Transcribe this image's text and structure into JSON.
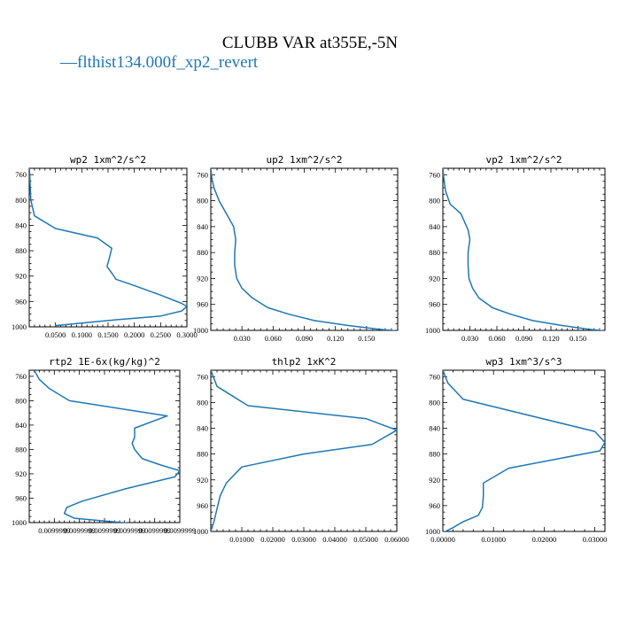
{
  "figure": {
    "title": "CLUBB VAR at355E,-5N",
    "legend_label": "flthist134.000f_xp2_revert",
    "legend_marker": "—",
    "line_color": "#1f77b4"
  },
  "chart_data": [
    {
      "type": "line",
      "title": "wp2  1xm^2/s^2",
      "xlim": [
        0.0,
        0.3
      ],
      "ylim": [
        1000,
        750
      ],
      "xticks": [
        0.05,
        0.1,
        0.15,
        0.2,
        0.25,
        0.3
      ],
      "xtick_labels": [
        "0.0500",
        "0.1000",
        "0.1500",
        "0.2000",
        "0.2500",
        "0.3000"
      ],
      "yticks": [
        760,
        800,
        840,
        880,
        920,
        960,
        1000
      ],
      "ytick_labels": [
        "760",
        "800",
        "840",
        "880",
        "920",
        "960",
        "1000"
      ],
      "series": [
        {
          "x": [
            0.0,
            0.001,
            0.002,
            0.003,
            0.01,
            0.05,
            0.13,
            0.157,
            0.153,
            0.148,
            0.157,
            0.165,
            0.2,
            0.25,
            0.29,
            0.3,
            0.29,
            0.25,
            0.15,
            0.05
          ],
          "y": [
            750,
            760,
            780,
            800,
            825,
            845,
            860,
            876,
            890,
            905,
            915,
            925,
            935,
            950,
            963,
            968,
            975,
            983,
            990,
            998
          ]
        }
      ]
    },
    {
      "type": "line",
      "title": "up2  1xm^2/s^2",
      "xlim": [
        0.0,
        0.18
      ],
      "ylim": [
        1000,
        750
      ],
      "xticks": [
        0.03,
        0.06,
        0.09,
        0.12,
        0.15
      ],
      "xtick_labels": [
        "0.030",
        "0.060",
        "0.090",
        "0.120",
        "0.150"
      ],
      "yticks": [
        760,
        800,
        840,
        880,
        920,
        960,
        1000
      ],
      "ytick_labels": [
        "760",
        "800",
        "840",
        "880",
        "920",
        "960",
        "1000"
      ],
      "series": [
        {
          "x": [
            0.0,
            0.001,
            0.003,
            0.008,
            0.015,
            0.022,
            0.024,
            0.023,
            0.023,
            0.025,
            0.03,
            0.04,
            0.055,
            0.075,
            0.1,
            0.13,
            0.16,
            0.18
          ],
          "y": [
            750,
            765,
            780,
            800,
            820,
            840,
            860,
            880,
            900,
            920,
            935,
            950,
            965,
            975,
            985,
            992,
            998,
            1001
          ]
        }
      ]
    },
    {
      "type": "line",
      "title": "vp2  1xm^2/s^2",
      "xlim": [
        0.0,
        0.18
      ],
      "ylim": [
        1000,
        750
      ],
      "xticks": [
        0.03,
        0.06,
        0.09,
        0.12,
        0.15
      ],
      "xtick_labels": [
        "0.030",
        "0.060",
        "0.090",
        "0.120",
        "0.150"
      ],
      "yticks": [
        760,
        800,
        840,
        880,
        920,
        960,
        1000
      ],
      "ytick_labels": [
        "760",
        "800",
        "840",
        "880",
        "920",
        "960",
        "1000"
      ],
      "series": [
        {
          "x": [
            0.0,
            0.001,
            0.003,
            0.008,
            0.02,
            0.028,
            0.03,
            0.028,
            0.028,
            0.029,
            0.033,
            0.04,
            0.055,
            0.075,
            0.1,
            0.13,
            0.16,
            0.18
          ],
          "y": [
            750,
            765,
            785,
            805,
            820,
            845,
            860,
            880,
            900,
            920,
            935,
            950,
            965,
            975,
            985,
            992,
            998,
            1001
          ]
        }
      ]
    },
    {
      "type": "line",
      "title": "rtp2  1E-6x(kg/kg)^2",
      "xlim": [
        0.0099994,
        0.01
      ],
      "ylim": [
        1000,
        750
      ],
      "xticks": [
        0.0099995,
        0.0099996,
        0.0099997,
        0.0099998,
        0.0099999,
        0.01
      ],
      "xtick_labels": [
        "0.0099999",
        "0.0099999",
        "0.0099999",
        "0.0099999",
        "0.0099999",
        "0.0099999"
      ],
      "yticks": [
        760,
        800,
        840,
        880,
        920,
        960,
        1000
      ],
      "ytick_labels": [
        "760",
        "800",
        "840",
        "880",
        "920",
        "960",
        "1000"
      ],
      "series": [
        {
          "x": [
            0.00999942,
            0.00999944,
            0.00999948,
            0.00999956,
            0.00999995,
            0.00999982,
            0.00999982,
            0.00999981,
            0.00999982,
            0.00999985,
            0.00999992,
            0.01,
            0.00999998,
            0.00999978,
            0.00999961,
            0.00999955,
            0.00999954,
            0.00999958,
            0.0099998
          ],
          "y": [
            750,
            765,
            780,
            800,
            825,
            845,
            860,
            870,
            880,
            895,
            905,
            915,
            925,
            945,
            965,
            975,
            985,
            993,
            1001
          ]
        }
      ]
    },
    {
      "type": "line",
      "title": "thlp2  1xK^2",
      "xlim": [
        0.0,
        0.06
      ],
      "ylim": [
        1000,
        750
      ],
      "xticks": [
        0.01,
        0.02,
        0.03,
        0.04,
        0.05,
        0.06
      ],
      "xtick_labels": [
        "0.01000",
        "0.02000",
        "0.03000",
        "0.04000",
        "0.05000",
        "0.06000"
      ],
      "yticks": [
        760,
        800,
        840,
        880,
        920,
        960,
        1000
      ],
      "ytick_labels": [
        "760",
        "800",
        "840",
        "880",
        "920",
        "960",
        "1000"
      ],
      "series": [
        {
          "x": [
            0.0,
            0.002,
            0.012,
            0.05,
            0.06,
            0.052,
            0.03,
            0.01,
            0.005,
            0.003,
            0.002,
            0.001,
            0.0
          ],
          "y": [
            750,
            775,
            805,
            825,
            843,
            865,
            880,
            900,
            925,
            945,
            965,
            985,
            1000
          ]
        }
      ]
    },
    {
      "type": "line",
      "title": "wp3  1xm^3/s^3",
      "xlim": [
        0.0,
        0.032
      ],
      "ylim": [
        1000,
        750
      ],
      "xticks": [
        0.0,
        0.01,
        0.02,
        0.03
      ],
      "xtick_labels": [
        "0.00000",
        "0.01000",
        "0.02000",
        "0.03000"
      ],
      "yticks": [
        760,
        800,
        840,
        880,
        920,
        960,
        1000
      ],
      "ytick_labels": [
        "760",
        "800",
        "840",
        "880",
        "920",
        "960",
        "1000"
      ],
      "series": [
        {
          "x": [
            0.0,
            0.001,
            0.004,
            0.03,
            0.032,
            0.031,
            0.013,
            0.008,
            0.008,
            0.0078,
            0.007,
            0.004,
            0.0018,
            0.0005,
            0.0
          ],
          "y": [
            750,
            770,
            795,
            845,
            862,
            875,
            902,
            925,
            945,
            963,
            975,
            985,
            995,
            1000,
            1001
          ]
        }
      ]
    }
  ]
}
